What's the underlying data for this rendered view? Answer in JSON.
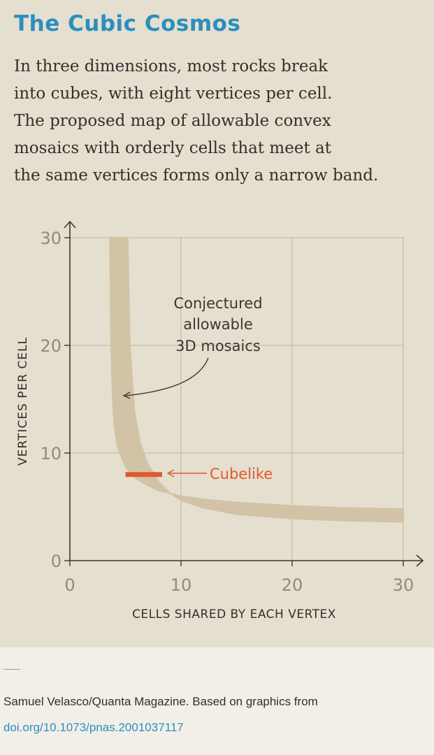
{
  "header": {
    "title": "The Cubic Cosmos",
    "lines": [
      "In three dimensions, most rocks break",
      "into cubes, with eight vertices per cell.",
      "The proposed map of allowable convex",
      "mosaics with orderly cells that meet at",
      "the same vertices forms only a narrow band."
    ]
  },
  "chart_data": {
    "type": "area",
    "xlabel": "CELLS SHARED BY EACH VERTEX",
    "ylabel": "VERTICES PER CELL",
    "xlim": [
      0,
      30
    ],
    "ylim": [
      0,
      30
    ],
    "xticks": [
      0,
      10,
      20,
      30
    ],
    "yticks": [
      0,
      10,
      20,
      30
    ],
    "grid": true,
    "band": {
      "lower": {
        "x": [
          5.2,
          5.4,
          5.8,
          6.3,
          7,
          8,
          9,
          10,
          12,
          15,
          20,
          25,
          30
        ],
        "y": [
          30,
          20,
          14,
          11,
          9,
          7.3,
          6.3,
          5.6,
          4.9,
          4.3,
          3.9,
          3.7,
          3.6
        ]
      },
      "upper": {
        "x": [
          3.6,
          3.7,
          3.85,
          4,
          4.3,
          5,
          6,
          7,
          8,
          10,
          12,
          15,
          20,
          25,
          30
        ],
        "y": [
          30,
          20,
          15,
          12.5,
          10.5,
          8.7,
          7.6,
          7,
          6.5,
          6,
          5.7,
          5.4,
          5.1,
          4.9,
          4.8
        ]
      },
      "color": "#d2c3a6"
    },
    "cubelike": {
      "x_start": 5,
      "x_end": 8.3,
      "y": 8,
      "color": "#e05a2b"
    },
    "annotations": {
      "band_label": [
        "Conjectured",
        "allowable",
        "3D mosaics"
      ],
      "cubelike_label": "Cubelike"
    }
  },
  "footer": {
    "credit": "Samuel Velasco/Quanta Magazine. Based on graphics from",
    "doi": "doi.org/10.1073/pnas.2001037117"
  }
}
